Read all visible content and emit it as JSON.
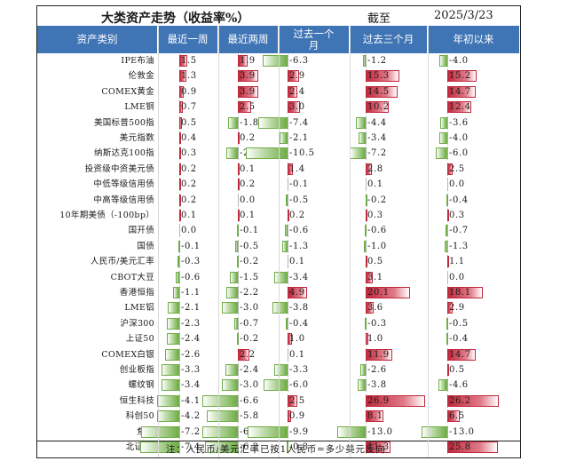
{
  "title": "大类资产走势（收益率%）",
  "date_label": "截至",
  "date_value": "2025/3/23",
  "footnote": "注：人民币/美元汇率已按1人民币=多少美元反向",
  "chart_data": {
    "type": "table",
    "columns": [
      "资产类别",
      "最近一周",
      "最近两周",
      "过去一个月",
      "过去三个月",
      "年初以来"
    ],
    "rows": [
      {
        "name": "IPE布油",
        "values": [
          1.5,
          1.9,
          -6.3,
          -1.2,
          -4.0
        ]
      },
      {
        "name": "伦敦金",
        "values": [
          1.3,
          3.9,
          2.9,
          15.3,
          15.2
        ]
      },
      {
        "name": "COMEX黄金",
        "values": [
          0.9,
          3.9,
          2.4,
          14.5,
          14.7
        ]
      },
      {
        "name": "LME铜",
        "values": [
          0.7,
          2.5,
          3.0,
          10.2,
          12.4
        ]
      },
      {
        "name": "美国标普500指",
        "values": [
          0.5,
          -1.8,
          -7.4,
          -4.4,
          -3.6
        ]
      },
      {
        "name": "美元指数",
        "values": [
          0.4,
          0.2,
          -2.1,
          -3.4,
          -4.0
        ]
      },
      {
        "name": "纳斯达克100指",
        "values": [
          0.3,
          -2.2,
          -10.5,
          -7.2,
          -6.0
        ]
      },
      {
        "name": "投资级中资美元债",
        "values": [
          0.2,
          0.1,
          1.4,
          2.8,
          2.5
        ]
      },
      {
        "name": "中低等级信用债",
        "values": [
          0.2,
          0.2,
          -0.1,
          0.1,
          0.0
        ]
      },
      {
        "name": "中高等级信用债",
        "values": [
          0.2,
          0.0,
          -0.5,
          -0.2,
          -0.4
        ]
      },
      {
        "name": "10年期美债（-100bp）",
        "values": [
          0.1,
          0.1,
          0.2,
          0.3,
          0.3
        ]
      },
      {
        "name": "国开债",
        "values": [
          0.0,
          -0.1,
          -0.6,
          -0.6,
          -0.7
        ]
      },
      {
        "name": "国债",
        "values": [
          -0.1,
          -0.5,
          -1.3,
          -1.0,
          -1.3
        ]
      },
      {
        "name": "人民币/美元汇率",
        "values": [
          -0.3,
          -0.2,
          0.1,
          0.5,
          1.1
        ]
      },
      {
        "name": "CBOT大豆",
        "values": [
          -0.6,
          -1.5,
          -3.4,
          3.1,
          0.0
        ]
      },
      {
        "name": "香港恒指",
        "values": [
          -1.1,
          -2.2,
          4.9,
          20.1,
          18.1
        ]
      },
      {
        "name": "LME铝",
        "values": [
          -2.1,
          -3.0,
          -3.8,
          3.6,
          2.9
        ]
      },
      {
        "name": "沪深300",
        "values": [
          -2.3,
          -0.7,
          -0.4,
          -0.3,
          -0.5
        ]
      },
      {
        "name": "上证50",
        "values": [
          -2.4,
          -0.2,
          1.0,
          1.0,
          -0.4
        ]
      },
      {
        "name": "COMEX白银",
        "values": [
          -2.6,
          2.2,
          0.1,
          11.9,
          14.7
        ]
      },
      {
        "name": "创业板指",
        "values": [
          -3.3,
          -2.4,
          -3.3,
          -2.6,
          0.5
        ]
      },
      {
        "name": "螺纹钢",
        "values": [
          -3.4,
          -3.0,
          -6.0,
          -3.8,
          -4.6
        ]
      },
      {
        "name": "恒生科技",
        "values": [
          -4.1,
          -6.6,
          2.5,
          26.9,
          26.2
        ]
      },
      {
        "name": "科创50",
        "values": [
          -4.2,
          -5.8,
          0.9,
          8.1,
          6.5
        ]
      },
      {
        "name": "焦煤",
        "values": [
          -7.2,
          -6.7,
          -9.9,
          -13.0,
          -13.0
        ]
      },
      {
        "name": "北证50",
        "values": [
          -7.4,
          -6.2,
          -0.3,
          11.3,
          25.8
        ]
      }
    ],
    "colors": {
      "positive": "#c0283c",
      "negative": "#70ad47",
      "header": "#3f74b5"
    }
  }
}
